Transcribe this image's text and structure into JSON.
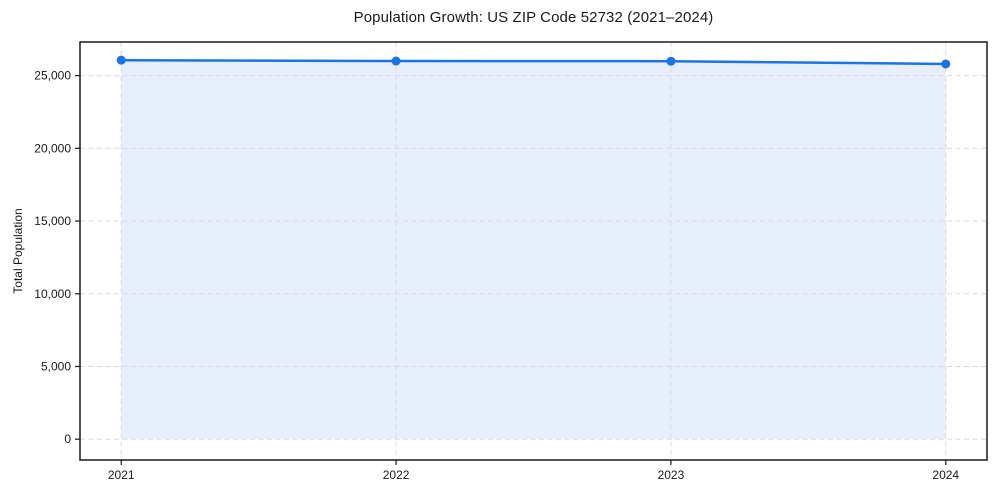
{
  "figure": {
    "background": "#ffffff"
  },
  "chart_data": {
    "type": "line",
    "title": "Population Growth: US ZIP Code 52732 (2021–2024)",
    "xlabel": "",
    "ylabel": "Total Population",
    "x": [
      2021,
      2022,
      2023,
      2024
    ],
    "x_tick_labels": [
      "2021",
      "2022",
      "2023",
      "2024"
    ],
    "series": [
      {
        "name": "Total Population",
        "values": [
          26060,
          26000,
          25990,
          25800
        ]
      }
    ],
    "y_ticks": [
      0,
      5000,
      10000,
      15000,
      20000,
      25000
    ],
    "y_tick_labels": [
      "0",
      "5,000",
      "10,000",
      "15,000",
      "20,000",
      "25,000"
    ],
    "xlim": [
      2020.85,
      2024.15
    ],
    "ylim": [
      -1430,
      27310
    ],
    "grid": true,
    "grid_style": "dashed",
    "legend": "none",
    "area_fill": true,
    "marker": "circle",
    "colors": {
      "line": "#1a73e8",
      "marker": "#1a73e8",
      "area_fill": "#e8effc",
      "grid": "#d9d9d9",
      "spine": "#1a1a1a",
      "text": "#1a1a1a"
    }
  }
}
